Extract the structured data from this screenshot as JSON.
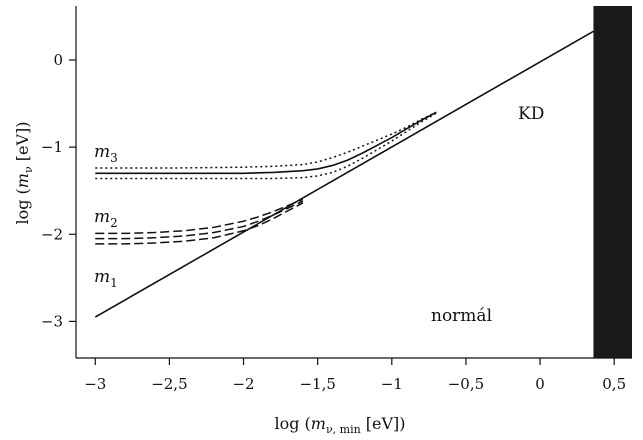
{
  "chart_data": {
    "type": "line",
    "xlabel": {
      "pre": "log (",
      "var": "m",
      "sub": "ν, min",
      "post": " [eV])"
    },
    "ylabel": {
      "pre": "log (",
      "var": "m",
      "sub": "ν",
      "post": " [eV])"
    },
    "xlim": [
      -3.13,
      0.62
    ],
    "ylim": [
      -3.42,
      0.62
    ],
    "xticks": [
      -3,
      -2.5,
      -2,
      -1.5,
      -1,
      -0.5,
      0,
      0.5
    ],
    "xtick_labels": [
      "−3",
      "−2,5",
      "−2",
      "−1,5",
      "−1",
      "−0,5",
      "0",
      "0,5"
    ],
    "yticks": [
      -3,
      -2,
      -1,
      0
    ],
    "ytick_labels": [
      "−3",
      "−2",
      "−1",
      "0"
    ],
    "grid": false,
    "excluded_region": {
      "x_from": 0.36,
      "x_to": 0.62,
      "color": "#1a1a1a"
    },
    "annotations": [
      {
        "text": "KD",
        "x": -0.07,
        "y": -0.55
      },
      {
        "text": "normál",
        "x": -0.62,
        "y": -2.75
      }
    ],
    "series_labels": [
      {
        "var": "m",
        "sub": "3",
        "x": -2.98,
        "y": -1.1
      },
      {
        "var": "m",
        "sub": "2",
        "x": -2.98,
        "y": -1.85
      },
      {
        "var": "m",
        "sub": "1",
        "x": -2.98,
        "y": -2.47
      }
    ],
    "series": [
      {
        "style": "solid",
        "x": [
          -3,
          0.36
        ],
        "y": [
          -2.95,
          0.33
        ]
      },
      {
        "style": "solid",
        "x": [
          -3,
          -2.5,
          -2,
          -1.8,
          -1.6,
          -1.5,
          -1.4,
          -1.3,
          -1.2,
          -1.1,
          -1.0,
          -0.9,
          -0.8,
          -0.7
        ],
        "y": [
          -1.3,
          -1.3,
          -1.3,
          -1.29,
          -1.27,
          -1.25,
          -1.21,
          -1.15,
          -1.07,
          -0.98,
          -0.89,
          -0.79,
          -0.69,
          -0.6
        ]
      },
      {
        "style": "dotted",
        "x": [
          -3,
          -2.5,
          -2,
          -1.8,
          -1.6,
          -1.5,
          -1.4,
          -1.3,
          -1.2,
          -1.1,
          -1.0,
          -0.9,
          -0.8,
          -0.7
        ],
        "y": [
          -1.24,
          -1.24,
          -1.23,
          -1.22,
          -1.2,
          -1.17,
          -1.12,
          -1.06,
          -0.99,
          -0.92,
          -0.85,
          -0.77,
          -0.68,
          -0.6
        ]
      },
      {
        "style": "dotted",
        "x": [
          -3,
          -2.5,
          -2,
          -1.8,
          -1.6,
          -1.5,
          -1.4,
          -1.3,
          -1.2,
          -1.1,
          -1.0,
          -0.9,
          -0.8,
          -0.7
        ],
        "y": [
          -1.36,
          -1.36,
          -1.36,
          -1.36,
          -1.35,
          -1.33,
          -1.29,
          -1.22,
          -1.13,
          -1.03,
          -0.93,
          -0.82,
          -0.71,
          -0.61
        ]
      },
      {
        "style": "dashed",
        "x": [
          -3,
          -2.8,
          -2.6,
          -2.4,
          -2.2,
          -2.0,
          -1.9,
          -1.8,
          -1.7,
          -1.6
        ],
        "y": [
          -1.99,
          -1.99,
          -1.98,
          -1.96,
          -1.92,
          -1.85,
          -1.8,
          -1.74,
          -1.67,
          -1.6
        ]
      },
      {
        "style": "dashed",
        "x": [
          -3,
          -2.8,
          -2.6,
          -2.4,
          -2.2,
          -2.0,
          -1.9,
          -1.8,
          -1.7,
          -1.6
        ],
        "y": [
          -2.05,
          -2.05,
          -2.04,
          -2.02,
          -1.98,
          -1.91,
          -1.85,
          -1.78,
          -1.7,
          -1.62
        ]
      },
      {
        "style": "dashed",
        "x": [
          -3,
          -2.8,
          -2.6,
          -2.4,
          -2.2,
          -2.0,
          -1.9,
          -1.8,
          -1.7,
          -1.6
        ],
        "y": [
          -2.11,
          -2.11,
          -2.1,
          -2.08,
          -2.04,
          -1.96,
          -1.9,
          -1.82,
          -1.73,
          -1.64
        ]
      }
    ]
  }
}
